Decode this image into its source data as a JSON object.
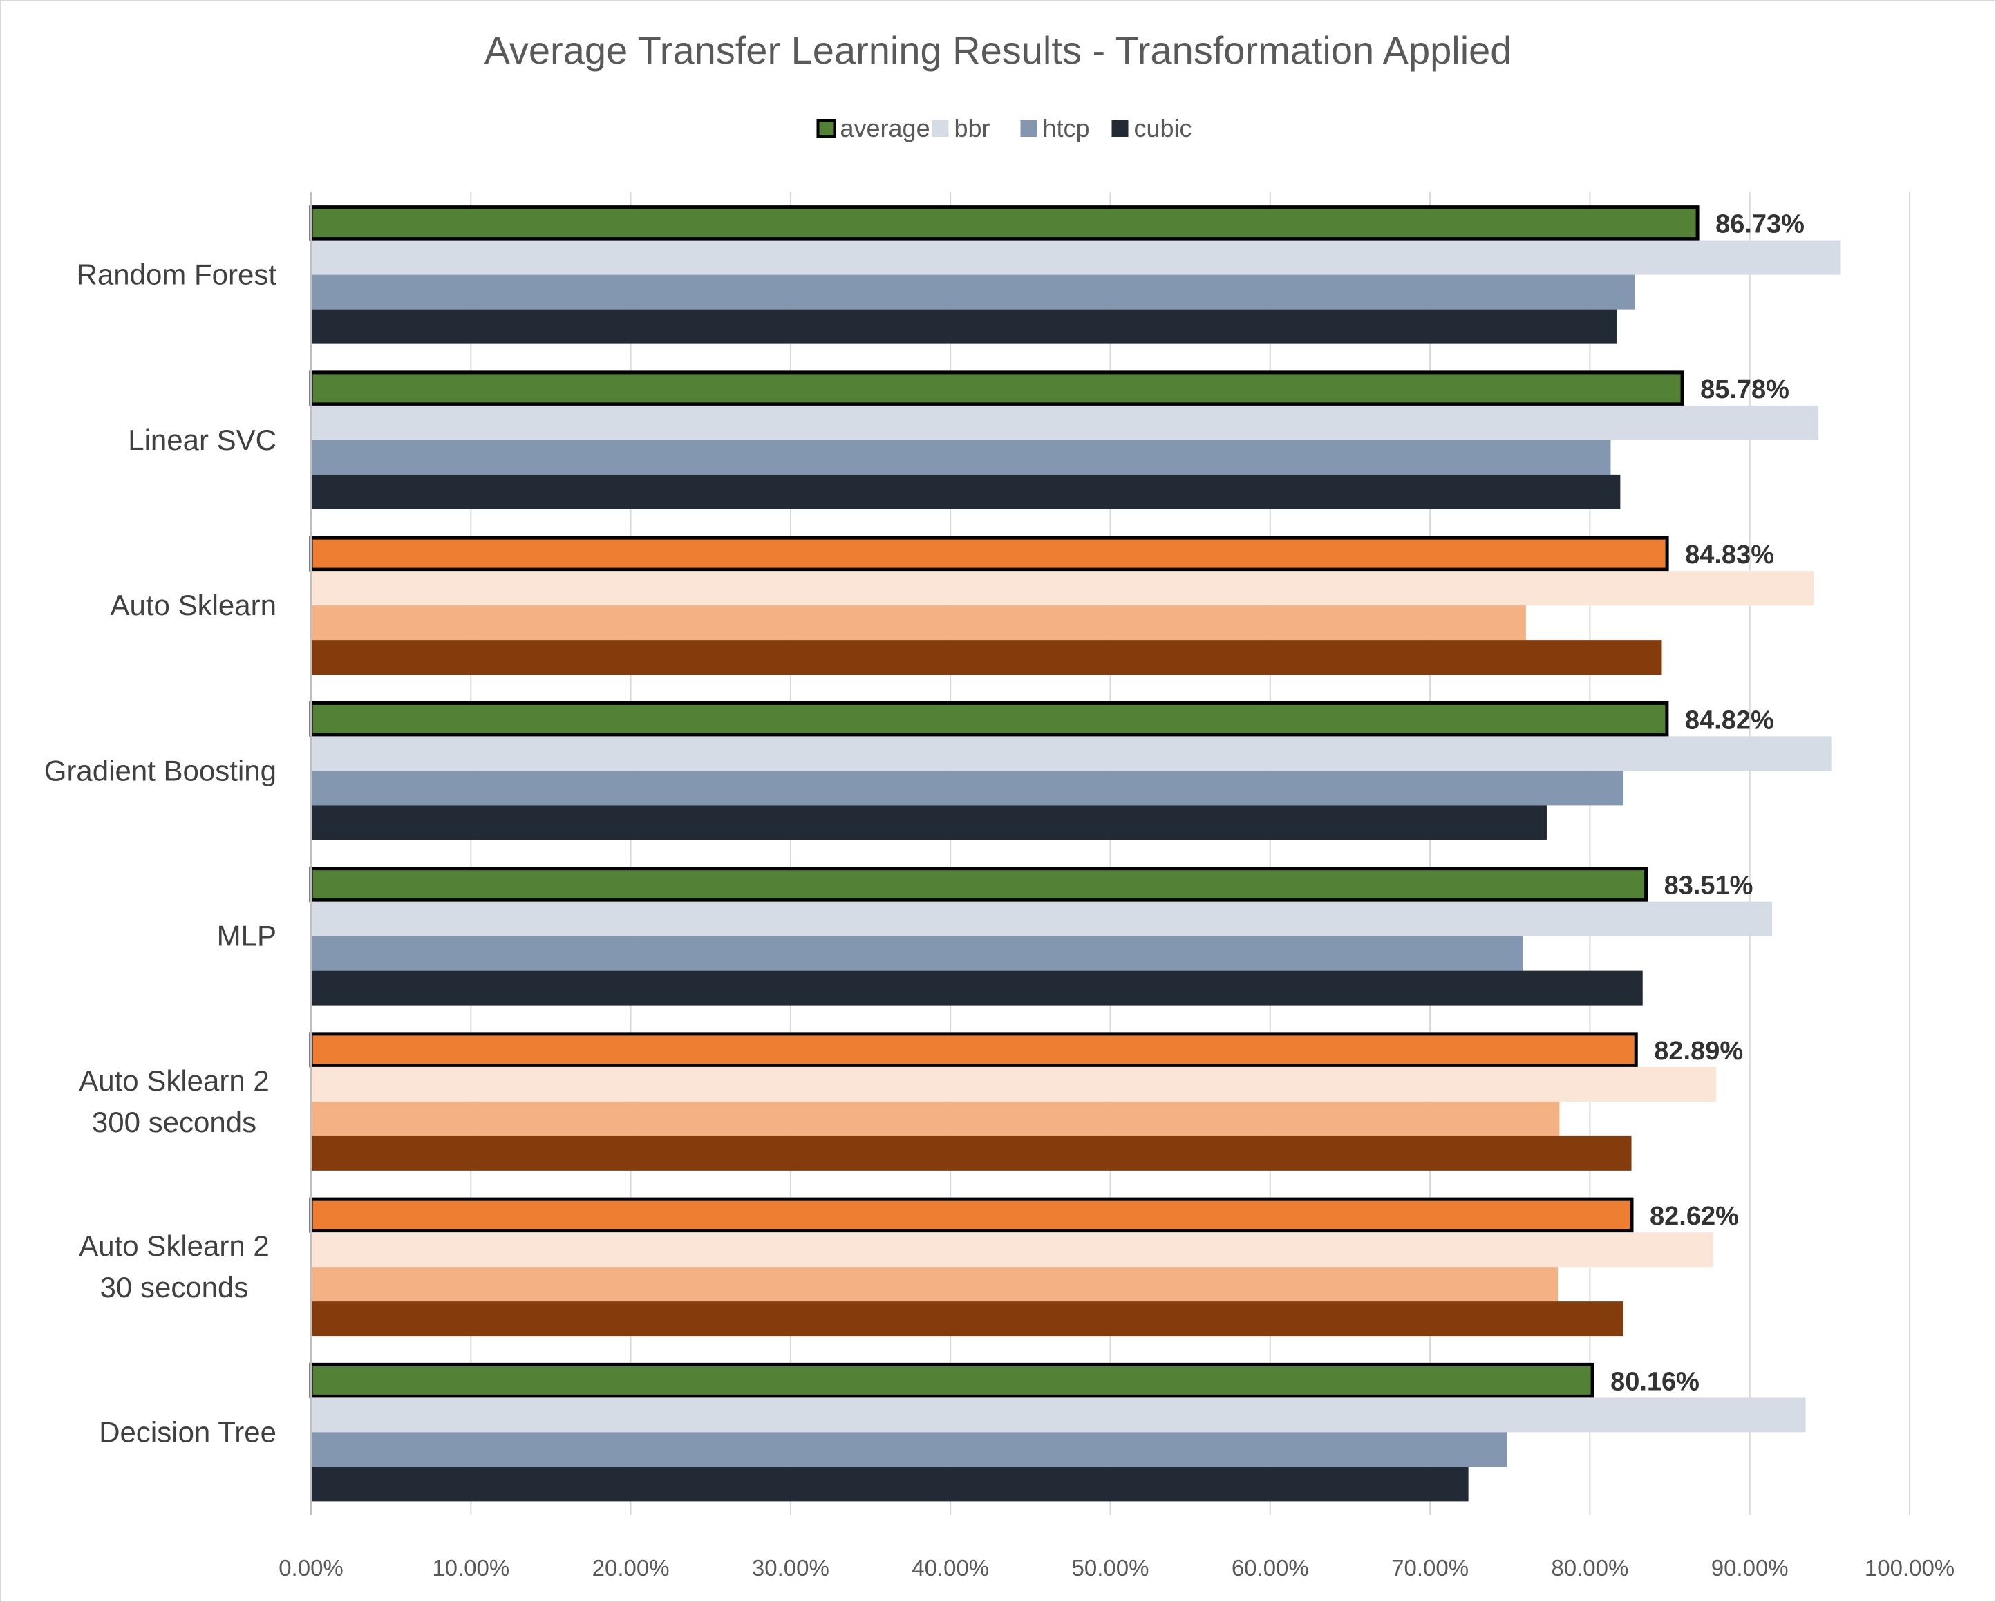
{
  "chart_data": {
    "type": "bar",
    "orientation": "horizontal",
    "title": "Average Transfer Learning Results -  Transformation Applied",
    "xlabel": "",
    "ylabel": "",
    "xlim": [
      0,
      1.0
    ],
    "tick_labels": [
      "0.00%",
      "10.00%",
      "20.00%",
      "30.00%",
      "40.00%",
      "50.00%",
      "60.00%",
      "70.00%",
      "80.00%",
      "90.00%",
      "100.00%"
    ],
    "grid": "vertical",
    "legend_position": "top",
    "legend": [
      {
        "name": "average",
        "color": "#538135",
        "outlined": true
      },
      {
        "name": "bbr",
        "color": "#D6DCE5",
        "outlined": false
      },
      {
        "name": "htcp",
        "color": "#8497B0",
        "outlined": false
      },
      {
        "name": "cubic",
        "color": "#222A35",
        "outlined": false
      }
    ],
    "categories": [
      "Random Forest",
      "Linear SVC",
      "Auto Sklearn",
      "Gradient Boosting",
      "MLP",
      "Auto Sklearn 2\n300 seconds",
      "Auto Sklearn 2\n30 seconds",
      "Decision Tree"
    ],
    "series": [
      {
        "name": "average",
        "values": [
          0.8673,
          0.8578,
          0.8483,
          0.8482,
          0.8351,
          0.8289,
          0.8262,
          0.8016
        ]
      },
      {
        "name": "bbr",
        "values": [
          0.957,
          0.943,
          0.94,
          0.951,
          0.914,
          0.879,
          0.877,
          0.935
        ]
      },
      {
        "name": "htcp",
        "values": [
          0.828,
          0.813,
          0.76,
          0.821,
          0.758,
          0.781,
          0.78,
          0.748
        ]
      },
      {
        "name": "cubic",
        "values": [
          0.817,
          0.819,
          0.845,
          0.773,
          0.833,
          0.826,
          0.821,
          0.724
        ]
      }
    ],
    "data_labels": [
      "86.73%",
      "85.78%",
      "84.83%",
      "84.82%",
      "83.51%",
      "82.89%",
      "82.62%",
      "80.16%"
    ],
    "highlighted_categories": [
      "Auto Sklearn",
      "Auto Sklearn 2\n300 seconds",
      "Auto Sklearn 2\n30 seconds"
    ],
    "palettes": {
      "default": [
        "#538135",
        "#D6DCE5",
        "#8497B0",
        "#222A35"
      ],
      "highlight": [
        "#ED7D31",
        "#FBE5D6",
        "#F4B183",
        "#843C0C"
      ]
    },
    "colors": {
      "gridline": "#D9D9D9",
      "axis": "#BFBFBF",
      "outline": "#000000"
    }
  }
}
